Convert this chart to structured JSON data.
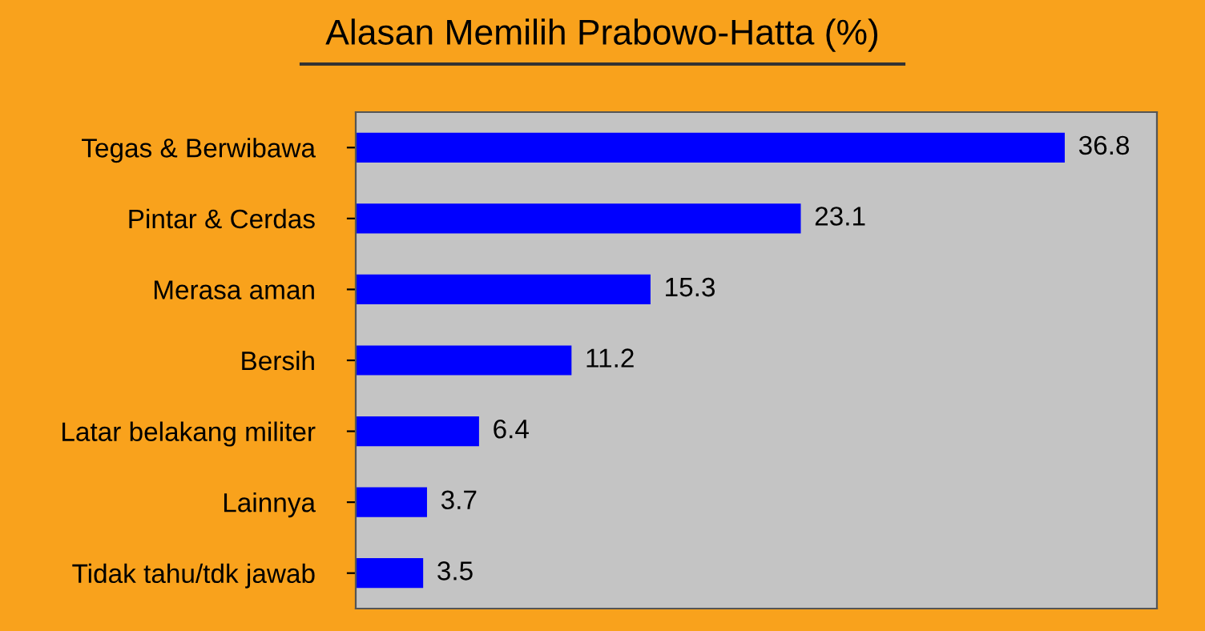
{
  "chart_data": {
    "type": "bar",
    "orientation": "horizontal",
    "title": "Alasan Memilih Prabowo-Hatta (%)",
    "categories": [
      "Tegas & Berwibawa",
      "Pintar & Cerdas",
      "Merasa aman",
      "Bersih",
      "Latar belakang militer",
      "Lainnya",
      "Tidak tahu/tdk jawab"
    ],
    "values": [
      36.8,
      23.1,
      15.3,
      11.2,
      6.4,
      3.7,
      3.5
    ],
    "color": "#0000ff",
    "data_labels": true,
    "grid": false,
    "legend": false
  }
}
